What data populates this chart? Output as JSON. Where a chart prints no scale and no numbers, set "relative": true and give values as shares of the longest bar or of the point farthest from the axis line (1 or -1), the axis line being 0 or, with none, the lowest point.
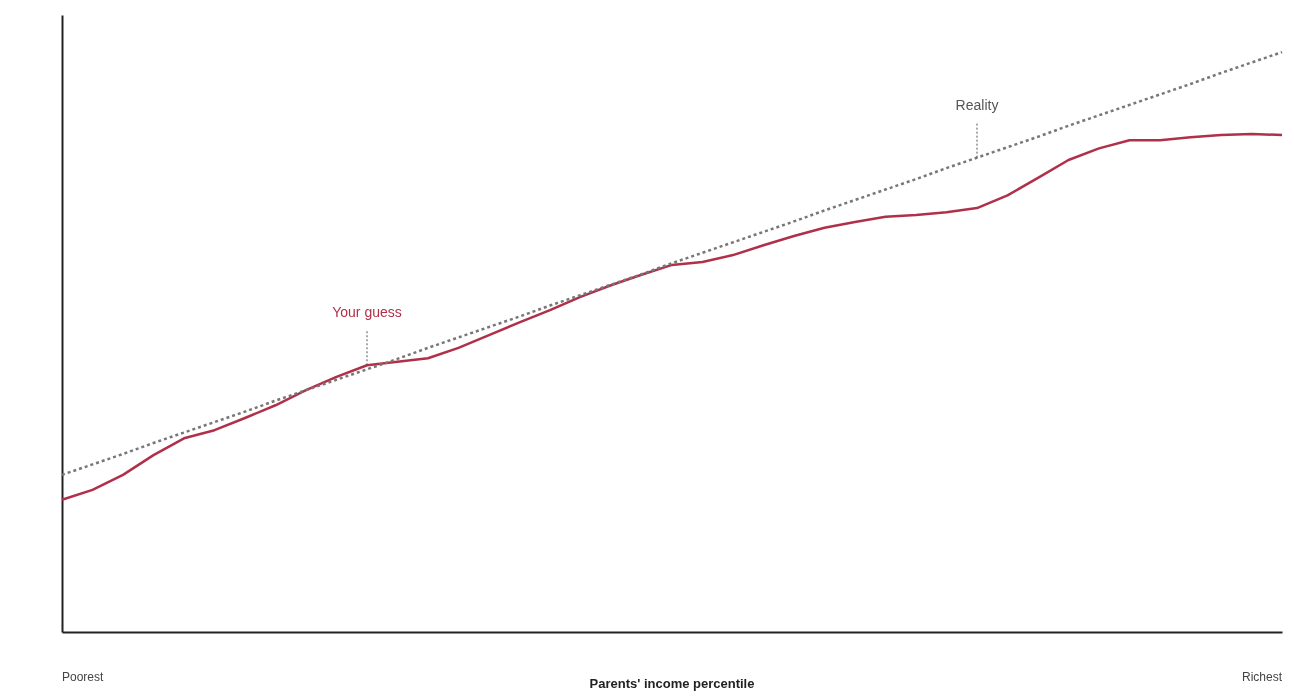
{
  "chart_data": {
    "type": "line",
    "relative": true,
    "xlabel": "Parents' income percentile",
    "categories": [
      null,
      null,
      null,
      null,
      null,
      null,
      null,
      null,
      null,
      null,
      null,
      null,
      null,
      null,
      null,
      null,
      null,
      null,
      null,
      null,
      null,
      null,
      null,
      null,
      null,
      null,
      null,
      null,
      null,
      null,
      null,
      null,
      null,
      null,
      null,
      null,
      null,
      null,
      null,
      null,
      null
    ],
    "series": [
      {
        "name": "Your guess",
        "color": "#b0304a",
        "line_style": "solid",
        "values": [
          0.228,
          0.245,
          0.271,
          0.305,
          0.334,
          0.348,
          0.369,
          0.391,
          0.417,
          0.44,
          0.46,
          0.466,
          0.472,
          0.49,
          0.512,
          0.534,
          0.555,
          0.578,
          0.598,
          0.616,
          0.633,
          0.638,
          0.65,
          0.667,
          0.683,
          0.697,
          0.707,
          0.716,
          0.719,
          0.724,
          0.731,
          0.753,
          0.783,
          0.814,
          0.834,
          0.848,
          0.848,
          0.853,
          0.857,
          0.859,
          0.857
        ]
      },
      {
        "name": "Reality",
        "color": "#777777",
        "line_style": "dotted",
        "values": [
          0.271,
          0.289,
          0.307,
          0.326,
          0.344,
          0.362,
          0.38,
          0.399,
          0.417,
          0.435,
          0.453,
          0.471,
          0.49,
          0.508,
          0.526,
          0.544,
          0.563,
          0.581,
          0.599,
          0.617,
          0.636,
          0.654,
          0.672,
          0.69,
          0.708,
          0.727,
          0.745,
          0.763,
          0.781,
          0.8,
          0.818,
          0.836,
          0.854,
          0.873,
          0.891,
          0.909,
          0.927,
          0.945,
          0.964,
          0.982,
          1.0
        ]
      }
    ],
    "annotations": [
      "Poorest",
      "Richest"
    ],
    "grid": false,
    "legend": false,
    "marker": "none"
  }
}
